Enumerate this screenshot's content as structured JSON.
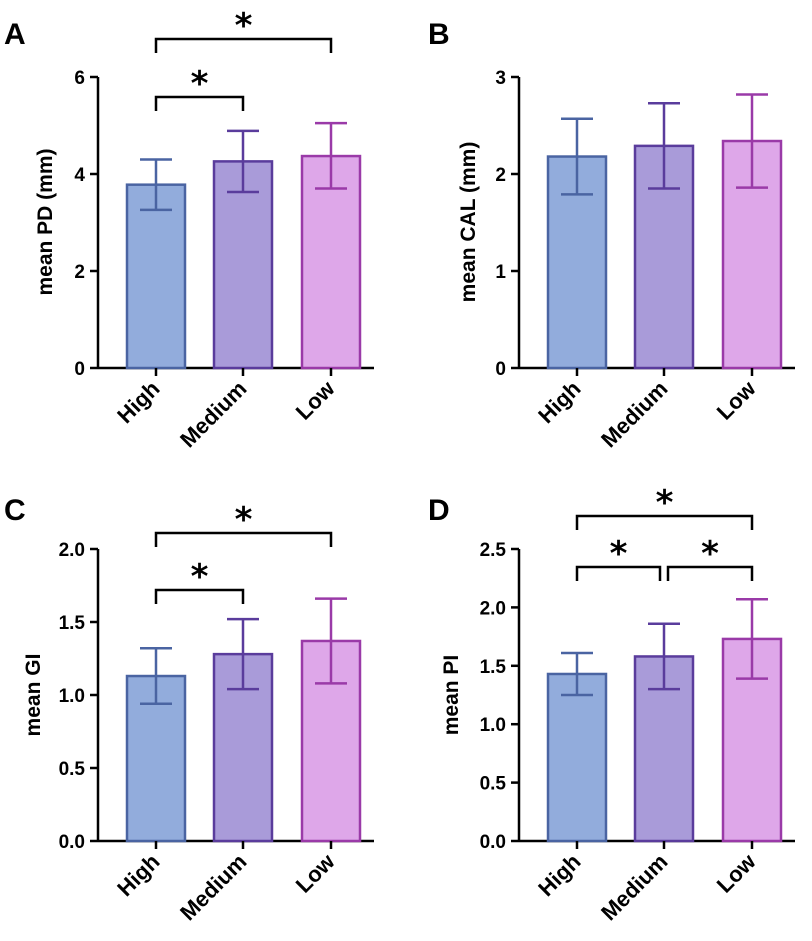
{
  "colors": {
    "High": {
      "fill": "#92acdc",
      "stroke": "#4a64a2"
    },
    "Medium": {
      "fill": "#a99bd9",
      "stroke": "#5a3c9c"
    },
    "Low": {
      "fill": "#dea7e9",
      "stroke": "#9a3aa8"
    },
    "axis": "#000000"
  },
  "chart_data": [
    {
      "panel": "A",
      "type": "bar",
      "categories": [
        "High",
        "Medium",
        "Low"
      ],
      "values": [
        3.78,
        4.26,
        4.37
      ],
      "error": [
        [
          3.26,
          4.3
        ],
        [
          3.63,
          4.89
        ],
        [
          3.7,
          5.05
        ]
      ],
      "ylabel": "mean PD (mm)",
      "ylim": [
        0,
        6
      ],
      "yticks": [
        0,
        2,
        4,
        6
      ],
      "significance": [
        {
          "from": "High",
          "to": "Medium",
          "label": "*"
        },
        {
          "from": "High",
          "to": "Low",
          "label": "*"
        }
      ]
    },
    {
      "panel": "B",
      "type": "bar",
      "categories": [
        "High",
        "Medium",
        "Low"
      ],
      "values": [
        2.18,
        2.29,
        2.34
      ],
      "error": [
        [
          1.79,
          2.57
        ],
        [
          1.85,
          2.73
        ],
        [
          1.86,
          2.82
        ]
      ],
      "ylabel": "mean CAL (mm)",
      "ylim": [
        0,
        3
      ],
      "yticks": [
        0,
        1,
        2,
        3
      ],
      "significance": []
    },
    {
      "panel": "C",
      "type": "bar",
      "categories": [
        "High",
        "Medium",
        "Low"
      ],
      "values": [
        1.13,
        1.28,
        1.37
      ],
      "error": [
        [
          0.94,
          1.32
        ],
        [
          1.04,
          1.52
        ],
        [
          1.08,
          1.66
        ]
      ],
      "ylabel": "mean GI",
      "ylim": [
        0,
        2.0
      ],
      "yticks": [
        "0.0",
        "0.5",
        "1.0",
        "1.5",
        "2.0"
      ],
      "significance": [
        {
          "from": "High",
          "to": "Medium",
          "label": "*"
        },
        {
          "from": "High",
          "to": "Low",
          "label": "*"
        }
      ]
    },
    {
      "panel": "D",
      "type": "bar",
      "categories": [
        "High",
        "Medium",
        "Low"
      ],
      "values": [
        1.43,
        1.58,
        1.73
      ],
      "error": [
        [
          1.25,
          1.61
        ],
        [
          1.3,
          1.86
        ],
        [
          1.39,
          2.07
        ]
      ],
      "ylabel": "mean PI",
      "ylim": [
        0,
        2.5
      ],
      "yticks": [
        "0.0",
        "0.5",
        "1.0",
        "1.5",
        "2.0",
        "2.5"
      ],
      "significance": [
        {
          "from": "High",
          "to": "Medium",
          "label": "*"
        },
        {
          "from": "Medium",
          "to": "Low",
          "label": "*"
        },
        {
          "from": "High",
          "to": "Low",
          "label": "*"
        }
      ]
    }
  ]
}
